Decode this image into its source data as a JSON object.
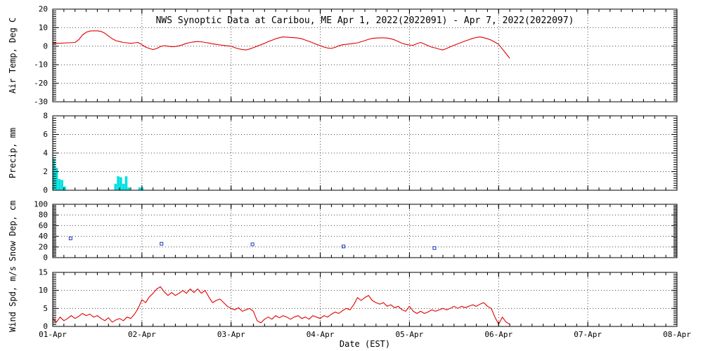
{
  "colors": {
    "axis": "#000000",
    "grid": "#444444",
    "temp_line": "#e00000",
    "precip_bar": "#00e0e0",
    "snow_marker": "#2233bb",
    "wind_line": "#e00000",
    "text": "#000000",
    "background": "#ffffff"
  },
  "chart_data": {
    "type": "multi-panel-timeseries",
    "title": "NWS Synoptic Data at Caribou, ME  Apr  1, 2022(2022091) - Apr  7, 2022(2022097)",
    "x_axis": {
      "label": "Date (EST)",
      "range": [
        1,
        8
      ],
      "ticks": [
        1,
        2,
        3,
        4,
        5,
        6,
        7,
        8
      ],
      "tick_labels": [
        "01-Apr",
        "02-Apr",
        "03-Apr",
        "04-Apr",
        "05-Apr",
        "06-Apr",
        "07-Apr",
        "08-Apr"
      ]
    },
    "panels": [
      {
        "type": "line",
        "ylabel": "Air Temp, Deg C",
        "ylim": [
          -30,
          20
        ],
        "yticks": [
          -30,
          -20,
          -10,
          0,
          10,
          20
        ],
        "color": "#e00000",
        "points": [
          [
            1.0,
            1.5
          ],
          [
            1.083,
            1.6
          ],
          [
            1.167,
            1.8
          ],
          [
            1.25,
            2.0
          ],
          [
            1.292,
            3.5
          ],
          [
            1.333,
            6.0
          ],
          [
            1.375,
            7.5
          ],
          [
            1.417,
            8.2
          ],
          [
            1.458,
            8.3
          ],
          [
            1.5,
            8.3
          ],
          [
            1.542,
            8.0
          ],
          [
            1.583,
            7.0
          ],
          [
            1.625,
            5.5
          ],
          [
            1.667,
            4.0
          ],
          [
            1.708,
            3.0
          ],
          [
            1.75,
            2.5
          ],
          [
            1.792,
            2.0
          ],
          [
            1.833,
            1.8
          ],
          [
            1.875,
            1.5
          ],
          [
            1.917,
            1.8
          ],
          [
            1.958,
            2.0
          ],
          [
            2.0,
            0.8
          ],
          [
            2.042,
            -0.5
          ],
          [
            2.083,
            -1.2
          ],
          [
            2.125,
            -1.8
          ],
          [
            2.167,
            -1.2
          ],
          [
            2.208,
            -0.2
          ],
          [
            2.25,
            0.3
          ],
          [
            2.292,
            0.0
          ],
          [
            2.333,
            -0.3
          ],
          [
            2.375,
            -0.2
          ],
          [
            2.417,
            0.2
          ],
          [
            2.458,
            0.8
          ],
          [
            2.5,
            1.5
          ],
          [
            2.542,
            2.0
          ],
          [
            2.583,
            2.3
          ],
          [
            2.625,
            2.5
          ],
          [
            2.667,
            2.4
          ],
          [
            2.708,
            2.0
          ],
          [
            2.75,
            1.7
          ],
          [
            2.792,
            1.3
          ],
          [
            2.833,
            1.0
          ],
          [
            2.875,
            0.7
          ],
          [
            2.917,
            0.4
          ],
          [
            2.958,
            0.2
          ],
          [
            3.0,
            0.0
          ],
          [
            3.042,
            -0.8
          ],
          [
            3.083,
            -1.4
          ],
          [
            3.125,
            -1.8
          ],
          [
            3.167,
            -2.0
          ],
          [
            3.208,
            -1.5
          ],
          [
            3.25,
            -0.8
          ],
          [
            3.292,
            0.0
          ],
          [
            3.333,
            0.8
          ],
          [
            3.375,
            1.5
          ],
          [
            3.417,
            2.5
          ],
          [
            3.458,
            3.2
          ],
          [
            3.5,
            4.0
          ],
          [
            3.542,
            4.6
          ],
          [
            3.583,
            5.0
          ],
          [
            3.625,
            4.9
          ],
          [
            3.667,
            4.7
          ],
          [
            3.708,
            4.6
          ],
          [
            3.75,
            4.4
          ],
          [
            3.792,
            4.0
          ],
          [
            3.833,
            3.3
          ],
          [
            3.875,
            2.6
          ],
          [
            3.917,
            1.8
          ],
          [
            3.958,
            1.0
          ],
          [
            4.0,
            0.3
          ],
          [
            4.042,
            -0.5
          ],
          [
            4.083,
            -1.0
          ],
          [
            4.125,
            -1.2
          ],
          [
            4.167,
            -0.6
          ],
          [
            4.208,
            0.2
          ],
          [
            4.25,
            0.8
          ],
          [
            4.292,
            1.0
          ],
          [
            4.333,
            1.2
          ],
          [
            4.375,
            1.5
          ],
          [
            4.417,
            1.8
          ],
          [
            4.458,
            2.4
          ],
          [
            4.5,
            3.0
          ],
          [
            4.542,
            3.7
          ],
          [
            4.583,
            4.2
          ],
          [
            4.625,
            4.4
          ],
          [
            4.667,
            4.5
          ],
          [
            4.708,
            4.5
          ],
          [
            4.75,
            4.4
          ],
          [
            4.792,
            4.0
          ],
          [
            4.833,
            3.4
          ],
          [
            4.875,
            2.5
          ],
          [
            4.917,
            1.6
          ],
          [
            4.958,
            1.0
          ],
          [
            5.0,
            0.7
          ],
          [
            5.042,
            0.5
          ],
          [
            5.083,
            1.4
          ],
          [
            5.125,
            2.0
          ],
          [
            5.167,
            1.2
          ],
          [
            5.208,
            0.3
          ],
          [
            5.25,
            -0.5
          ],
          [
            5.292,
            -1.0
          ],
          [
            5.333,
            -1.6
          ],
          [
            5.375,
            -2.0
          ],
          [
            5.417,
            -1.2
          ],
          [
            5.458,
            -0.3
          ],
          [
            5.5,
            0.5
          ],
          [
            5.542,
            1.3
          ],
          [
            5.583,
            2.0
          ],
          [
            5.625,
            2.8
          ],
          [
            5.667,
            3.5
          ],
          [
            5.708,
            4.2
          ],
          [
            5.75,
            4.7
          ],
          [
            5.792,
            5.0
          ],
          [
            5.833,
            4.6
          ],
          [
            5.875,
            4.0
          ],
          [
            5.917,
            3.3
          ],
          [
            5.958,
            2.2
          ],
          [
            6.0,
            1.0
          ],
          [
            6.042,
            -1.5
          ],
          [
            6.083,
            -4.0
          ],
          [
            6.125,
            -6.5
          ]
        ]
      },
      {
        "type": "bar",
        "ylabel": "Precip, mm",
        "ylim": [
          0,
          8
        ],
        "yticks": [
          0,
          2,
          4,
          6,
          8
        ],
        "color": "#00e0e0",
        "bars": [
          {
            "x": 1.0,
            "v": 3.4
          },
          {
            "x": 1.03,
            "v": 2.4
          },
          {
            "x": 1.06,
            "v": 1.2
          },
          {
            "x": 1.09,
            "v": 1.1
          },
          {
            "x": 1.12,
            "v": 0.4
          },
          {
            "x": 1.69,
            "v": 0.7
          },
          {
            "x": 1.72,
            "v": 1.5
          },
          {
            "x": 1.75,
            "v": 1.4
          },
          {
            "x": 1.78,
            "v": 0.7
          },
          {
            "x": 1.81,
            "v": 1.5
          },
          {
            "x": 1.84,
            "v": 0.3
          },
          {
            "x": 1.96,
            "v": 0.3
          },
          {
            "x": 1.99,
            "v": 0.3
          }
        ]
      },
      {
        "type": "scatter",
        "ylabel": "Snow Dep, cm",
        "ylim": [
          0,
          100
        ],
        "yticks": [
          0,
          20,
          40,
          60,
          80,
          100
        ],
        "color": "#2233bb",
        "points": [
          [
            1.2,
            36
          ],
          [
            2.22,
            26
          ],
          [
            3.24,
            25
          ],
          [
            4.26,
            21
          ],
          [
            5.28,
            18
          ]
        ]
      },
      {
        "type": "line",
        "ylabel": "Wind Spd, m/s",
        "ylim": [
          0,
          15
        ],
        "yticks": [
          0,
          5,
          10,
          15
        ],
        "color": "#e00000",
        "points": [
          [
            1.0,
            2.2
          ],
          [
            1.042,
            1.2
          ],
          [
            1.083,
            2.6
          ],
          [
            1.125,
            1.6
          ],
          [
            1.167,
            2.2
          ],
          [
            1.208,
            3.0
          ],
          [
            1.25,
            2.2
          ],
          [
            1.292,
            2.8
          ],
          [
            1.333,
            3.6
          ],
          [
            1.375,
            3.0
          ],
          [
            1.417,
            3.4
          ],
          [
            1.458,
            2.6
          ],
          [
            1.5,
            3.0
          ],
          [
            1.542,
            2.2
          ],
          [
            1.583,
            1.6
          ],
          [
            1.625,
            2.4
          ],
          [
            1.667,
            1.2
          ],
          [
            1.708,
            1.8
          ],
          [
            1.75,
            2.2
          ],
          [
            1.792,
            1.6
          ],
          [
            1.833,
            2.6
          ],
          [
            1.875,
            2.2
          ],
          [
            1.917,
            3.4
          ],
          [
            1.958,
            5.0
          ],
          [
            2.0,
            7.4
          ],
          [
            2.042,
            6.6
          ],
          [
            2.083,
            8.2
          ],
          [
            2.125,
            9.2
          ],
          [
            2.167,
            10.4
          ],
          [
            2.208,
            11.0
          ],
          [
            2.25,
            9.6
          ],
          [
            2.292,
            8.6
          ],
          [
            2.333,
            9.4
          ],
          [
            2.375,
            8.6
          ],
          [
            2.417,
            9.2
          ],
          [
            2.458,
            10.0
          ],
          [
            2.5,
            9.2
          ],
          [
            2.542,
            10.4
          ],
          [
            2.583,
            9.4
          ],
          [
            2.625,
            10.4
          ],
          [
            2.667,
            9.2
          ],
          [
            2.708,
            10.0
          ],
          [
            2.75,
            8.2
          ],
          [
            2.792,
            6.6
          ],
          [
            2.833,
            7.2
          ],
          [
            2.875,
            7.6
          ],
          [
            2.917,
            6.6
          ],
          [
            2.958,
            5.6
          ],
          [
            3.0,
            5.0
          ],
          [
            3.042,
            4.6
          ],
          [
            3.083,
            5.2
          ],
          [
            3.125,
            4.2
          ],
          [
            3.167,
            4.6
          ],
          [
            3.208,
            5.0
          ],
          [
            3.25,
            4.2
          ],
          [
            3.292,
            1.6
          ],
          [
            3.333,
            1.0
          ],
          [
            3.375,
            2.0
          ],
          [
            3.417,
            2.6
          ],
          [
            3.458,
            2.0
          ],
          [
            3.5,
            3.0
          ],
          [
            3.542,
            2.4
          ],
          [
            3.583,
            3.0
          ],
          [
            3.625,
            2.6
          ],
          [
            3.667,
            2.0
          ],
          [
            3.708,
            2.6
          ],
          [
            3.75,
            3.0
          ],
          [
            3.792,
            2.2
          ],
          [
            3.833,
            2.6
          ],
          [
            3.875,
            2.0
          ],
          [
            3.917,
            3.0
          ],
          [
            3.958,
            2.6
          ],
          [
            4.0,
            2.2
          ],
          [
            4.042,
            3.0
          ],
          [
            4.083,
            2.6
          ],
          [
            4.125,
            3.4
          ],
          [
            4.167,
            4.0
          ],
          [
            4.208,
            3.6
          ],
          [
            4.25,
            4.4
          ],
          [
            4.292,
            5.0
          ],
          [
            4.333,
            4.6
          ],
          [
            4.375,
            6.0
          ],
          [
            4.417,
            8.0
          ],
          [
            4.458,
            7.2
          ],
          [
            4.5,
            8.0
          ],
          [
            4.542,
            8.6
          ],
          [
            4.583,
            7.2
          ],
          [
            4.625,
            6.6
          ],
          [
            4.667,
            6.2
          ],
          [
            4.708,
            6.6
          ],
          [
            4.75,
            5.6
          ],
          [
            4.792,
            6.0
          ],
          [
            4.833,
            5.2
          ],
          [
            4.875,
            5.6
          ],
          [
            4.917,
            4.6
          ],
          [
            4.958,
            4.2
          ],
          [
            5.0,
            5.6
          ],
          [
            5.042,
            4.2
          ],
          [
            5.083,
            3.6
          ],
          [
            5.125,
            4.2
          ],
          [
            5.167,
            3.6
          ],
          [
            5.208,
            4.0
          ],
          [
            5.25,
            4.6
          ],
          [
            5.292,
            4.2
          ],
          [
            5.333,
            4.6
          ],
          [
            5.375,
            5.0
          ],
          [
            5.417,
            4.6
          ],
          [
            5.458,
            5.0
          ],
          [
            5.5,
            5.6
          ],
          [
            5.542,
            5.0
          ],
          [
            5.583,
            5.6
          ],
          [
            5.625,
            5.2
          ],
          [
            5.667,
            5.6
          ],
          [
            5.708,
            6.0
          ],
          [
            5.75,
            5.6
          ],
          [
            5.792,
            6.2
          ],
          [
            5.833,
            6.6
          ],
          [
            5.875,
            5.6
          ],
          [
            5.917,
            5.0
          ],
          [
            5.958,
            2.6
          ],
          [
            6.0,
            0.6
          ],
          [
            6.042,
            2.6
          ],
          [
            6.083,
            1.2
          ],
          [
            6.125,
            0.6
          ]
        ]
      }
    ]
  }
}
